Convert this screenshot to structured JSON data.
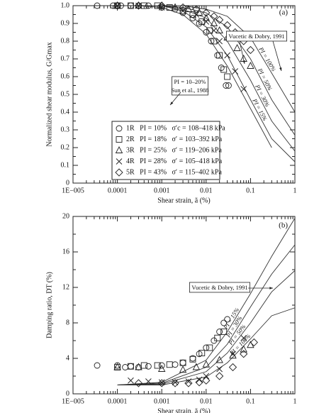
{
  "chart_data": [
    {
      "type": "scatter",
      "xscale": "log",
      "xlabel": "Shear strain, ã (%)",
      "ylabel": "Normalized shear modulus, G/Gmax",
      "xlim": [
        1e-05,
        1
      ],
      "xticks": [
        {
          "value": 1e-05,
          "label": "1E−005"
        },
        0.0001,
        0.001,
        0.01,
        0.1,
        1
      ],
      "ylim": [
        0,
        1
      ],
      "yticks": [
        0,
        0.1,
        0.2,
        0.3,
        0.4,
        0.5,
        0.6,
        0.7,
        0.8,
        0.9,
        {
          "value": 1,
          "label": "1.0"
        }
      ],
      "legend": "lower-left",
      "annotations": [
        "(a)",
        "Vucetic & Dobry, 1991",
        "PI = 10–20%",
        "Sun et al., 1988"
      ],
      "series": [
        {
          "name": "1R   PI = 10%   σ′c = 108–418 kPa",
          "marker": "circle",
          "x": [
            3.5e-05,
            8e-05,
            0.00012,
            0.0002,
            0.0003,
            0.0005,
            0.001,
            0.002,
            0.003,
            0.005,
            0.007,
            0.01,
            0.013,
            0.018,
            0.022,
            0.028,
            0.032
          ],
          "values": [
            1,
            1,
            1,
            1,
            1,
            1,
            0.99,
            0.98,
            0.96,
            0.93,
            0.9,
            0.85,
            0.8,
            0.72,
            0.65,
            0.55,
            0.55
          ]
        },
        {
          "name": "2R   PI = 18%   σ′ = 103–392 kPa",
          "marker": "square",
          "x": [
            0.0001,
            0.0002,
            0.0004,
            0.0008,
            0.0015,
            0.003,
            0.005,
            0.008,
            0.012,
            0.015,
            0.02,
            0.025,
            0.03
          ],
          "values": [
            1,
            1,
            1,
            1,
            0.99,
            0.97,
            0.95,
            0.91,
            0.86,
            0.8,
            0.72,
            0.64,
            0.6
          ]
        },
        {
          "name": "3R   PI = 25%   σ′ = 119–206 kPa",
          "marker": "triangle",
          "x": [
            0.0001,
            0.0003,
            0.001,
            0.002,
            0.004,
            0.007,
            0.01,
            0.015,
            0.02,
            0.03,
            0.05,
            0.07,
            0.1
          ],
          "values": [
            1,
            1,
            1,
            0.99,
            0.98,
            0.96,
            0.93,
            0.9,
            0.86,
            0.82,
            0.76,
            0.7,
            0.66
          ]
        },
        {
          "name": "4R   PI = 28%   σ′ = 105–418 kPa",
          "marker": "x",
          "x": [
            0.0001,
            0.0003,
            0.001,
            0.003,
            0.006,
            0.01,
            0.015,
            0.02,
            0.03,
            0.045,
            0.07
          ],
          "values": [
            1,
            1,
            0.99,
            0.97,
            0.95,
            0.91,
            0.86,
            0.8,
            0.72,
            0.63,
            0.53
          ]
        },
        {
          "name": "5R   PI = 43%   σ′ = 115–402 kPa",
          "marker": "diamond",
          "x": [
            0.0001,
            0.0003,
            0.001,
            0.003,
            0.006,
            0.01,
            0.015,
            0.02,
            0.03,
            0.045,
            0.07,
            0.1
          ],
          "values": [
            1,
            1,
            1,
            0.99,
            0.98,
            0.96,
            0.94,
            0.92,
            0.89,
            0.85,
            0.8,
            0.75
          ]
        }
      ],
      "curves": [
        {
          "label": "PI = 15%",
          "x": [
            0.001,
            0.003,
            0.01,
            0.03,
            0.1,
            0.3,
            1
          ],
          "values": [
            1,
            0.97,
            0.88,
            0.72,
            0.47,
            0.25,
            0.12
          ]
        },
        {
          "label": "PI = 30%",
          "x": [
            0.001,
            0.003,
            0.01,
            0.03,
            0.1,
            0.3,
            1
          ],
          "values": [
            1,
            0.98,
            0.93,
            0.8,
            0.58,
            0.35,
            0.18
          ]
        },
        {
          "label": "PI = 50%",
          "x": [
            0.001,
            0.003,
            0.01,
            0.03,
            0.1,
            0.3,
            1
          ],
          "values": [
            1,
            0.99,
            0.96,
            0.88,
            0.7,
            0.47,
            0.27
          ]
        },
        {
          "label": "PI = 100%",
          "x": [
            0.001,
            0.003,
            0.01,
            0.03,
            0.1,
            0.3,
            1
          ],
          "values": [
            1,
            1,
            0.98,
            0.94,
            0.82,
            0.62,
            0.4
          ]
        },
        {
          "x": [
            0.0003,
            0.001,
            0.003,
            0.01,
            0.03,
            0.1,
            0.3
          ],
          "values": [
            1,
            0.99,
            0.95,
            0.84,
            0.66,
            0.42,
            0.2
          ]
        }
      ]
    },
    {
      "type": "scatter",
      "xscale": "log",
      "xlabel": "Shear strain, ã (%)",
      "ylabel": "Damping ratio, DT (%)",
      "xlim": [
        1e-05,
        1
      ],
      "xticks": [
        {
          "value": 1e-05,
          "label": "1E−005"
        },
        0.0001,
        0.001,
        0.01,
        0.1,
        1
      ],
      "ylim": [
        0,
        20
      ],
      "yticks": [
        0,
        4,
        8,
        12,
        16,
        20
      ],
      "annotations": [
        "(b)",
        "Vucetic & Dobry, 1991"
      ],
      "series": [
        {
          "marker": "circle",
          "x": [
            3.5e-05,
            0.0001,
            0.00015,
            0.0002,
            0.0003,
            0.0005,
            0.001,
            0.002,
            0.003,
            0.005,
            0.007,
            0.01,
            0.015,
            0.02,
            0.025,
            0.03
          ],
          "values": [
            3.2,
            3.2,
            3,
            3.1,
            3,
            3.1,
            3.2,
            3.3,
            3.5,
            4,
            4.5,
            5.2,
            6,
            7,
            8,
            8.4
          ]
        },
        {
          "marker": "square",
          "x": [
            0.0001,
            0.0002,
            0.0004,
            0.0008,
            0.0015,
            0.003,
            0.005,
            0.008,
            0.012,
            0.018,
            0.025
          ],
          "values": [
            3,
            3.1,
            3.2,
            3.2,
            3.3,
            3.5,
            3.9,
            4.6,
            5.2,
            6.3,
            7
          ]
        },
        {
          "marker": "triangle",
          "x": [
            0.0001,
            0.0003,
            0.001,
            0.003,
            0.006,
            0.01,
            0.02,
            0.04,
            0.07,
            0.1
          ],
          "values": [
            3,
            3,
            2.8,
            2.7,
            3,
            3.3,
            3.8,
            4.3,
            5,
            5.5
          ]
        },
        {
          "marker": "x",
          "x": [
            0.0002,
            0.0005,
            0.001,
            0.002,
            0.004,
            0.007,
            0.01,
            0.02,
            0.04,
            0.07
          ],
          "values": [
            1.5,
            1.4,
            1.3,
            1.3,
            1.4,
            1.6,
            2,
            2.8,
            4.5,
            6.3
          ]
        },
        {
          "marker": "diamond",
          "x": [
            0.0003,
            0.001,
            0.002,
            0.004,
            0.007,
            0.01,
            0.02,
            0.04,
            0.07,
            0.12
          ],
          "values": [
            1.2,
            1.2,
            1.2,
            1.2,
            1.3,
            1.5,
            2,
            3,
            4.5,
            5.8
          ]
        }
      ],
      "curves": [
        {
          "label": "PI = 15%",
          "x": [
            0.0001,
            0.001,
            0.01,
            0.03,
            0.1,
            0.3,
            1
          ],
          "values": [
            1,
            1.3,
            3.8,
            7,
            11.3,
            15.5,
            19.8
          ]
        },
        {
          "label": "PI = 30%",
          "x": [
            0.0001,
            0.001,
            0.01,
            0.03,
            0.1,
            0.3,
            1
          ],
          "values": [
            1,
            1.2,
            3,
            5.6,
            9.8,
            13.5,
            16.8
          ]
        },
        {
          "label": "PI = 50%",
          "x": [
            0.0001,
            0.001,
            0.01,
            0.03,
            0.1,
            0.3,
            1
          ],
          "values": [
            1,
            1.1,
            2.5,
            4.6,
            8,
            11.5,
            13.9
          ]
        },
        {
          "label": "PI = 100%",
          "x": [
            0.0001,
            0.001,
            0.01,
            0.03,
            0.1,
            0.3,
            1
          ],
          "values": [
            1,
            1,
            1.9,
            3.5,
            6.2,
            8.8,
            9.7
          ]
        }
      ]
    }
  ]
}
